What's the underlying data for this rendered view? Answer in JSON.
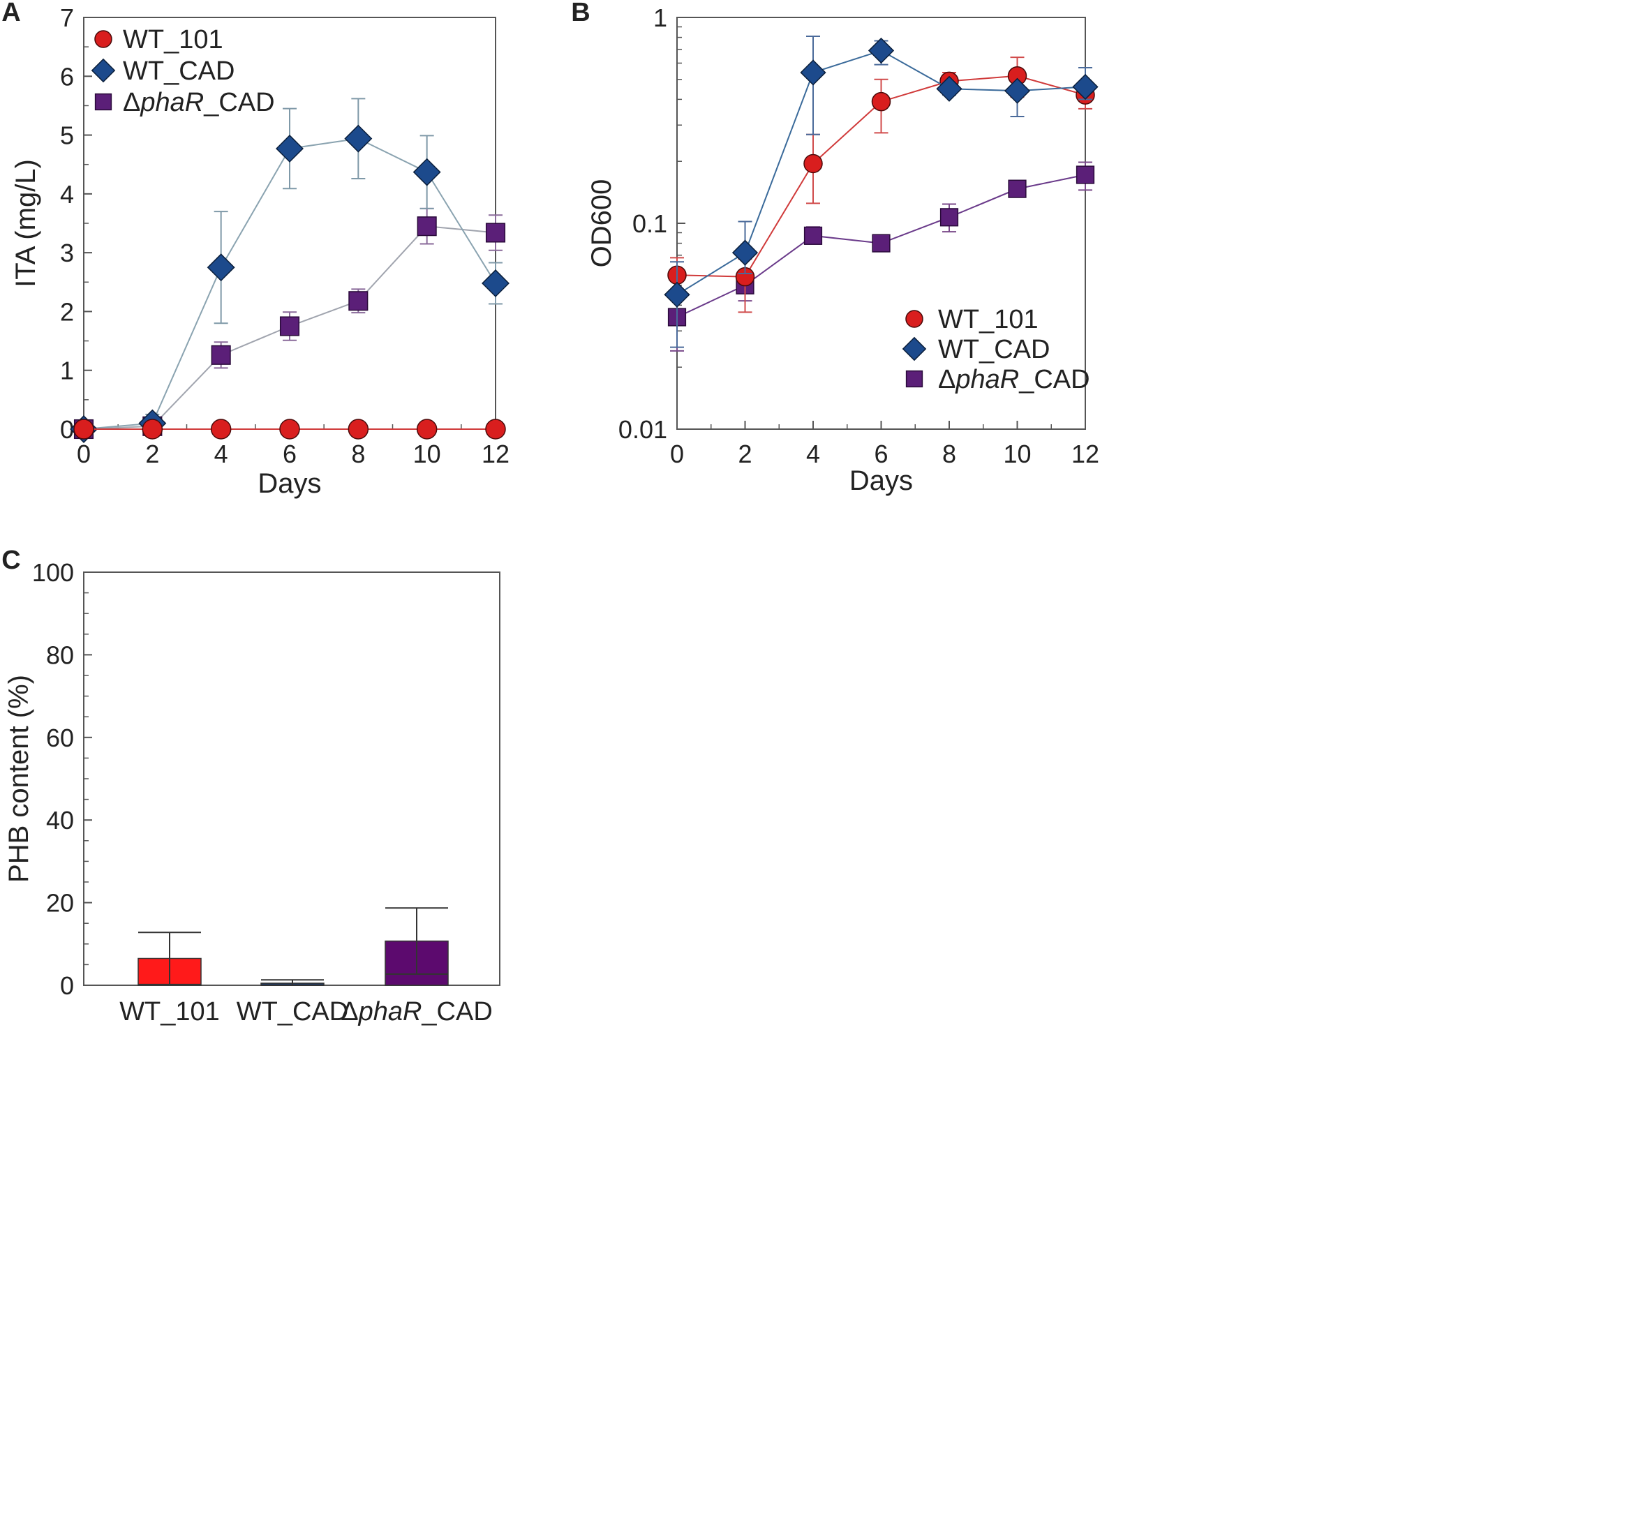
{
  "colors": {
    "wt101": "#d91e1e",
    "wtcad": "#1c4a8c",
    "phar": "#5b1f78",
    "wt101_line": "#d03a3a",
    "wtcad_line_A": "#8aa3b0",
    "wtcad_line_B": "#3a6a9a",
    "phar_line_A": "#a0a4ae",
    "phar_line_B": "#6a3a8a",
    "bar_wt101": "#ff1a1a",
    "bar_wtcad": "#1c3a6a",
    "bar_phar": "#5c0a6e"
  },
  "chart_data": [
    {
      "panel_letter": "A",
      "type": "line",
      "xlabel": "Days",
      "ylabel": "ITA (mg/L)",
      "xlim": [
        0,
        12
      ],
      "ylim": [
        0,
        7
      ],
      "xticks": [
        "0",
        "2",
        "4",
        "6",
        "8",
        "10",
        "12"
      ],
      "yticks": [
        "0",
        "1",
        "2",
        "3",
        "4",
        "5",
        "6",
        "7"
      ],
      "x": [
        0,
        2,
        4,
        6,
        8,
        10,
        12
      ],
      "legend_position": "top-left",
      "series": [
        {
          "name": "WT_101",
          "legend_prefix": "",
          "legend_italic": "",
          "legend_suffix": "WT_101",
          "marker": "circle",
          "values": [
            0,
            0,
            0,
            0,
            0,
            0,
            0
          ],
          "errors": [
            0,
            0,
            0,
            0,
            0,
            0,
            0
          ]
        },
        {
          "name": "WT_CAD",
          "legend_prefix": "",
          "legend_italic": "",
          "legend_suffix": "WT_CAD",
          "marker": "diamond",
          "values": [
            0,
            0.1,
            2.75,
            4.77,
            4.94,
            4.37,
            2.48
          ],
          "errors": [
            0,
            0.15,
            0.95,
            0.68,
            0.68,
            0.62,
            0.35
          ]
        },
        {
          "name": "ΔphaR_CAD",
          "legend_prefix": "Δ",
          "legend_italic": "phaR",
          "legend_suffix": "_CAD",
          "marker": "square",
          "values": [
            0,
            0.05,
            1.26,
            1.75,
            2.18,
            3.45,
            3.34
          ],
          "errors": [
            0,
            0.05,
            0.22,
            0.24,
            0.2,
            0.3,
            0.3
          ]
        }
      ]
    },
    {
      "panel_letter": "B",
      "type": "line",
      "xlabel": "Days",
      "ylabel": "OD600",
      "yscale": "log",
      "xlim": [
        0,
        12
      ],
      "ylim": [
        0.01,
        1
      ],
      "xticks": [
        "0",
        "2",
        "4",
        "6",
        "8",
        "10",
        "12"
      ],
      "yticks": [
        "0.01",
        "0.1",
        "1"
      ],
      "x": [
        0,
        2,
        4,
        6,
        8,
        10,
        12
      ],
      "legend_position": "lower-right",
      "series": [
        {
          "name": "WT_101",
          "legend_prefix": "",
          "legend_italic": "",
          "legend_suffix": "WT_101",
          "marker": "circle",
          "values": [
            0.056,
            0.055,
            0.195,
            0.39,
            0.49,
            0.52,
            0.42
          ],
          "err_lo": [
            0.012,
            0.018,
            0.07,
            0.115,
            0.04,
            0.11,
            0.06
          ],
          "err_hi": [
            0.012,
            0.012,
            0.075,
            0.11,
            0.05,
            0.12,
            0.06
          ]
        },
        {
          "name": "WT_CAD",
          "legend_prefix": "",
          "legend_italic": "",
          "legend_suffix": "WT_CAD",
          "marker": "diamond",
          "values": [
            0.045,
            0.072,
            0.54,
            0.69,
            0.45,
            0.44,
            0.46
          ],
          "err_lo": [
            0.02,
            0.015,
            0.27,
            0.1,
            0.03,
            0.11,
            0.06
          ],
          "err_hi": [
            0.02,
            0.03,
            0.27,
            0.08,
            0.03,
            0.02,
            0.11
          ]
        },
        {
          "name": "ΔphaR_CAD",
          "legend_prefix": "Δ",
          "legend_italic": "phaR",
          "legend_suffix": "_CAD",
          "marker": "square",
          "values": [
            0.035,
            0.05,
            0.087,
            0.08,
            0.107,
            0.147,
            0.172
          ],
          "err_lo": [
            0.011,
            0.008,
            0.006,
            0.003,
            0.016,
            0.004,
            0.027
          ],
          "err_hi": [
            0.011,
            0.008,
            0.009,
            0.003,
            0.017,
            0.005,
            0.026
          ]
        }
      ]
    },
    {
      "panel_letter": "C",
      "type": "bar",
      "xlabel": "",
      "ylabel": "PHB content (%)",
      "ylim": [
        0,
        100
      ],
      "yticks": [
        "0",
        "20",
        "40",
        "60",
        "80",
        "100"
      ],
      "categories": [
        {
          "name": "WT_101",
          "prefix": "",
          "italic": "",
          "suffix": "WT_101"
        },
        {
          "name": "WT_CAD",
          "prefix": "",
          "italic": "",
          "suffix": "WT_CAD"
        },
        {
          "name": "ΔphaR_CAD",
          "prefix": "Δ",
          "italic": "phaR",
          "suffix": "_CAD"
        }
      ],
      "values": [
        6.5,
        0.5,
        10.7
      ],
      "errors": [
        6.3,
        0.8,
        8.0
      ]
    }
  ]
}
